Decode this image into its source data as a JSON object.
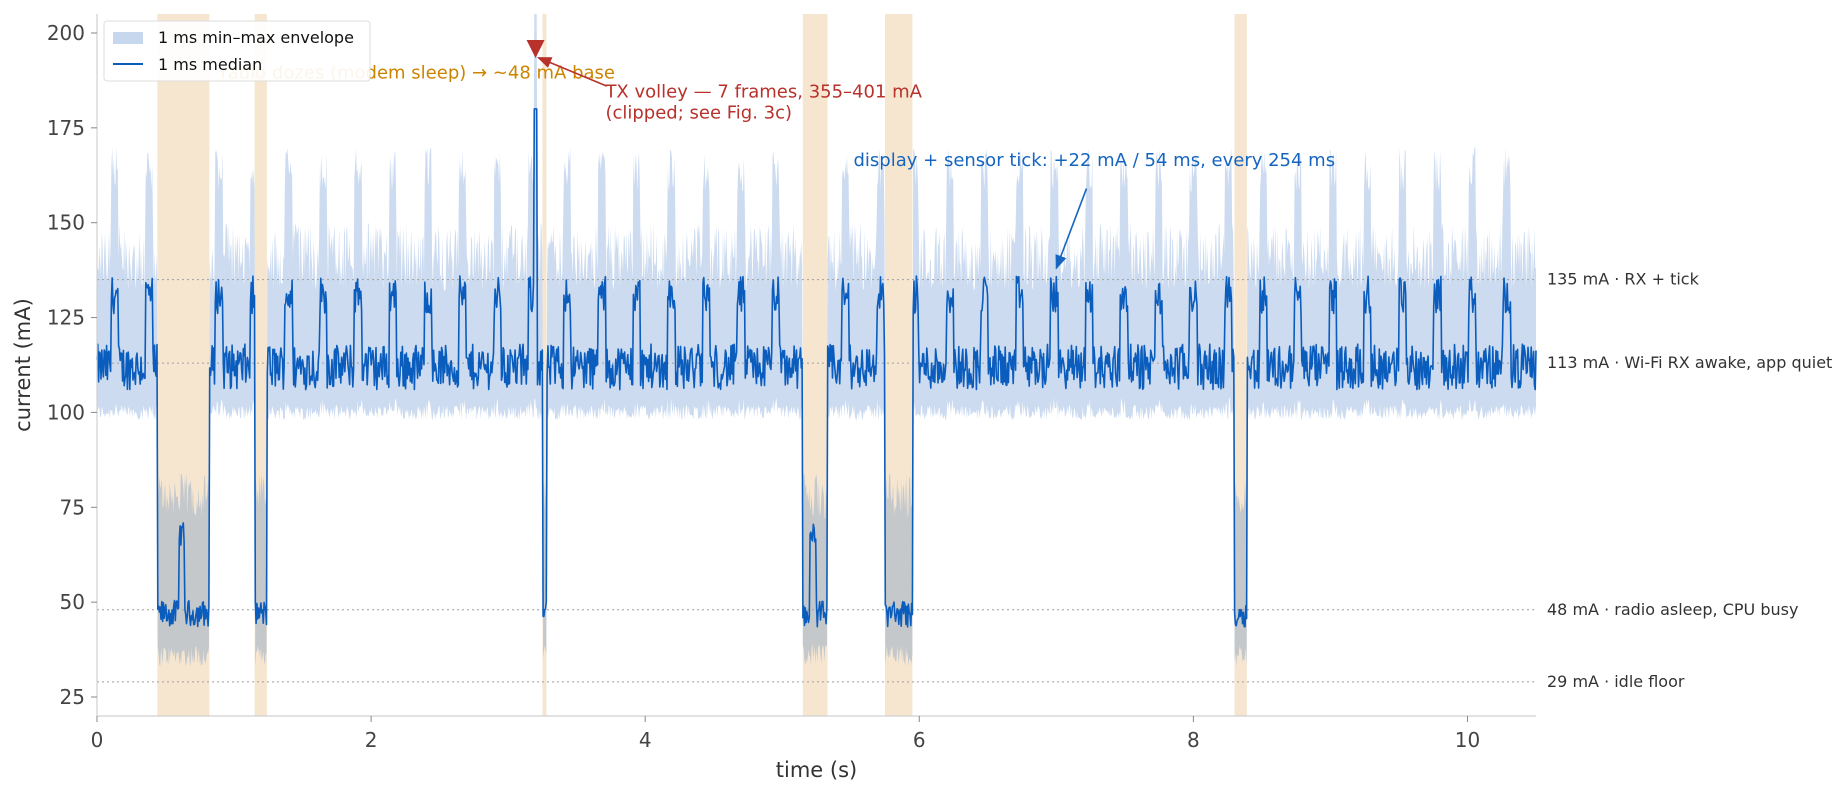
{
  "chart_data": {
    "type": "line",
    "xlabel": "time (s)",
    "ylabel": "current (mA)",
    "xlim": [
      0,
      10.5
    ],
    "ylim": [
      20,
      205
    ],
    "x_ticks": [
      0,
      2,
      4,
      6,
      8,
      10
    ],
    "y_ticks": [
      25,
      50,
      75,
      100,
      125,
      150,
      175,
      200
    ],
    "grid": false,
    "legend_position": "top-left",
    "colors": {
      "median": "#0a5cbd",
      "envelope": "#c7d7ee",
      "gray_envelope": "#c4c4c4",
      "doze_band": "#f6e6d0",
      "tx_marker": "#b8312b",
      "radio_annotation": "#cc8400",
      "tick_annotation": "#1565c0",
      "reference_line": "#9e9e9e"
    },
    "series": [
      {
        "name": "1 ms min–max envelope",
        "kind": "band",
        "typical_low": 98,
        "typical_high": 160,
        "tick_spike_high": 170
      },
      {
        "name": "1 ms median",
        "kind": "line",
        "awake_baseline": 112,
        "tick_level": 131,
        "doze_level": 47,
        "doze_step_level": 68,
        "tx_spike_peak": 180
      }
    ],
    "doze_intervals": [
      [
        0.44,
        0.82
      ],
      [
        1.15,
        1.24
      ],
      [
        3.25,
        3.28
      ],
      [
        5.15,
        5.33
      ],
      [
        5.75,
        5.95
      ],
      [
        8.3,
        8.39
      ]
    ],
    "tick_period_ms": 254,
    "tick_duration_ms": 54,
    "tick_first_s": 0.1,
    "tx_marker_time_s": 3.2,
    "tx_marker_value": 195,
    "reference_lines": [
      {
        "value": 135,
        "label": "135 mA · RX + tick"
      },
      {
        "value": 113,
        "label": "113 mA · Wi-Fi RX awake, app quiet"
      },
      {
        "value": 48,
        "label": "48 mA · radio asleep, CPU busy"
      },
      {
        "value": 29,
        "label": "29 mA · idle floor"
      }
    ],
    "annotations": [
      {
        "id": "radio",
        "lines": [
          "radio dozes (modem sleep) → ~48 mA base"
        ],
        "text_x": 0.9,
        "text_y": 188,
        "arrow": null
      },
      {
        "id": "tx",
        "lines": [
          "TX volley — 7 frames, 355–401 mA",
          "(clipped; see Fig. 3c)"
        ],
        "text_x": 3.71,
        "text_y": 183,
        "arrow": {
          "x": 3.22,
          "y": 193.5,
          "from_x": 3.72,
          "from_y": 186
        }
      },
      {
        "id": "tick",
        "lines": [
          "display + sensor tick: +22 mA / 54 ms, every 254 ms"
        ],
        "text_x": 5.52,
        "text_y": 165,
        "arrow": {
          "x": 7.0,
          "y": 138,
          "from_x": 7.22,
          "from_y": 159
        }
      }
    ]
  }
}
